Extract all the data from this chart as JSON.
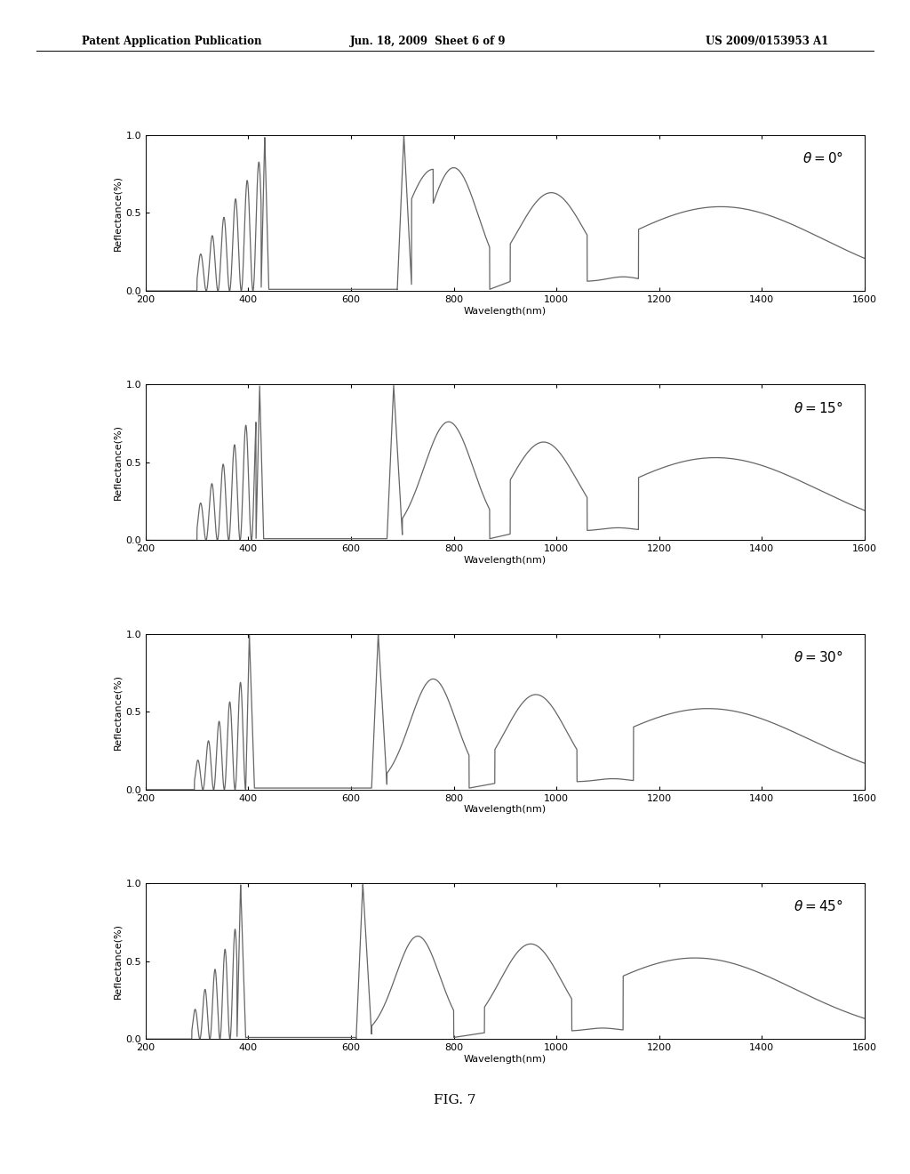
{
  "header_left": "Patent Application Publication",
  "header_mid": "Jun. 18, 2009  Sheet 6 of 9",
  "header_right": "US 2009/0153953 A1",
  "footer_label": "FIG. 7",
  "xlim": [
    200,
    1600
  ],
  "ylim": [
    0,
    1
  ],
  "yticks": [
    0,
    0.5,
    1
  ],
  "xticks": [
    200,
    400,
    600,
    800,
    1000,
    1200,
    1400,
    1600
  ],
  "xlabel": "Wavelength(nm)",
  "ylabel": "Reflectance(%)",
  "line_color": "#666666",
  "line_width": 0.9,
  "background_color": "#ffffff"
}
